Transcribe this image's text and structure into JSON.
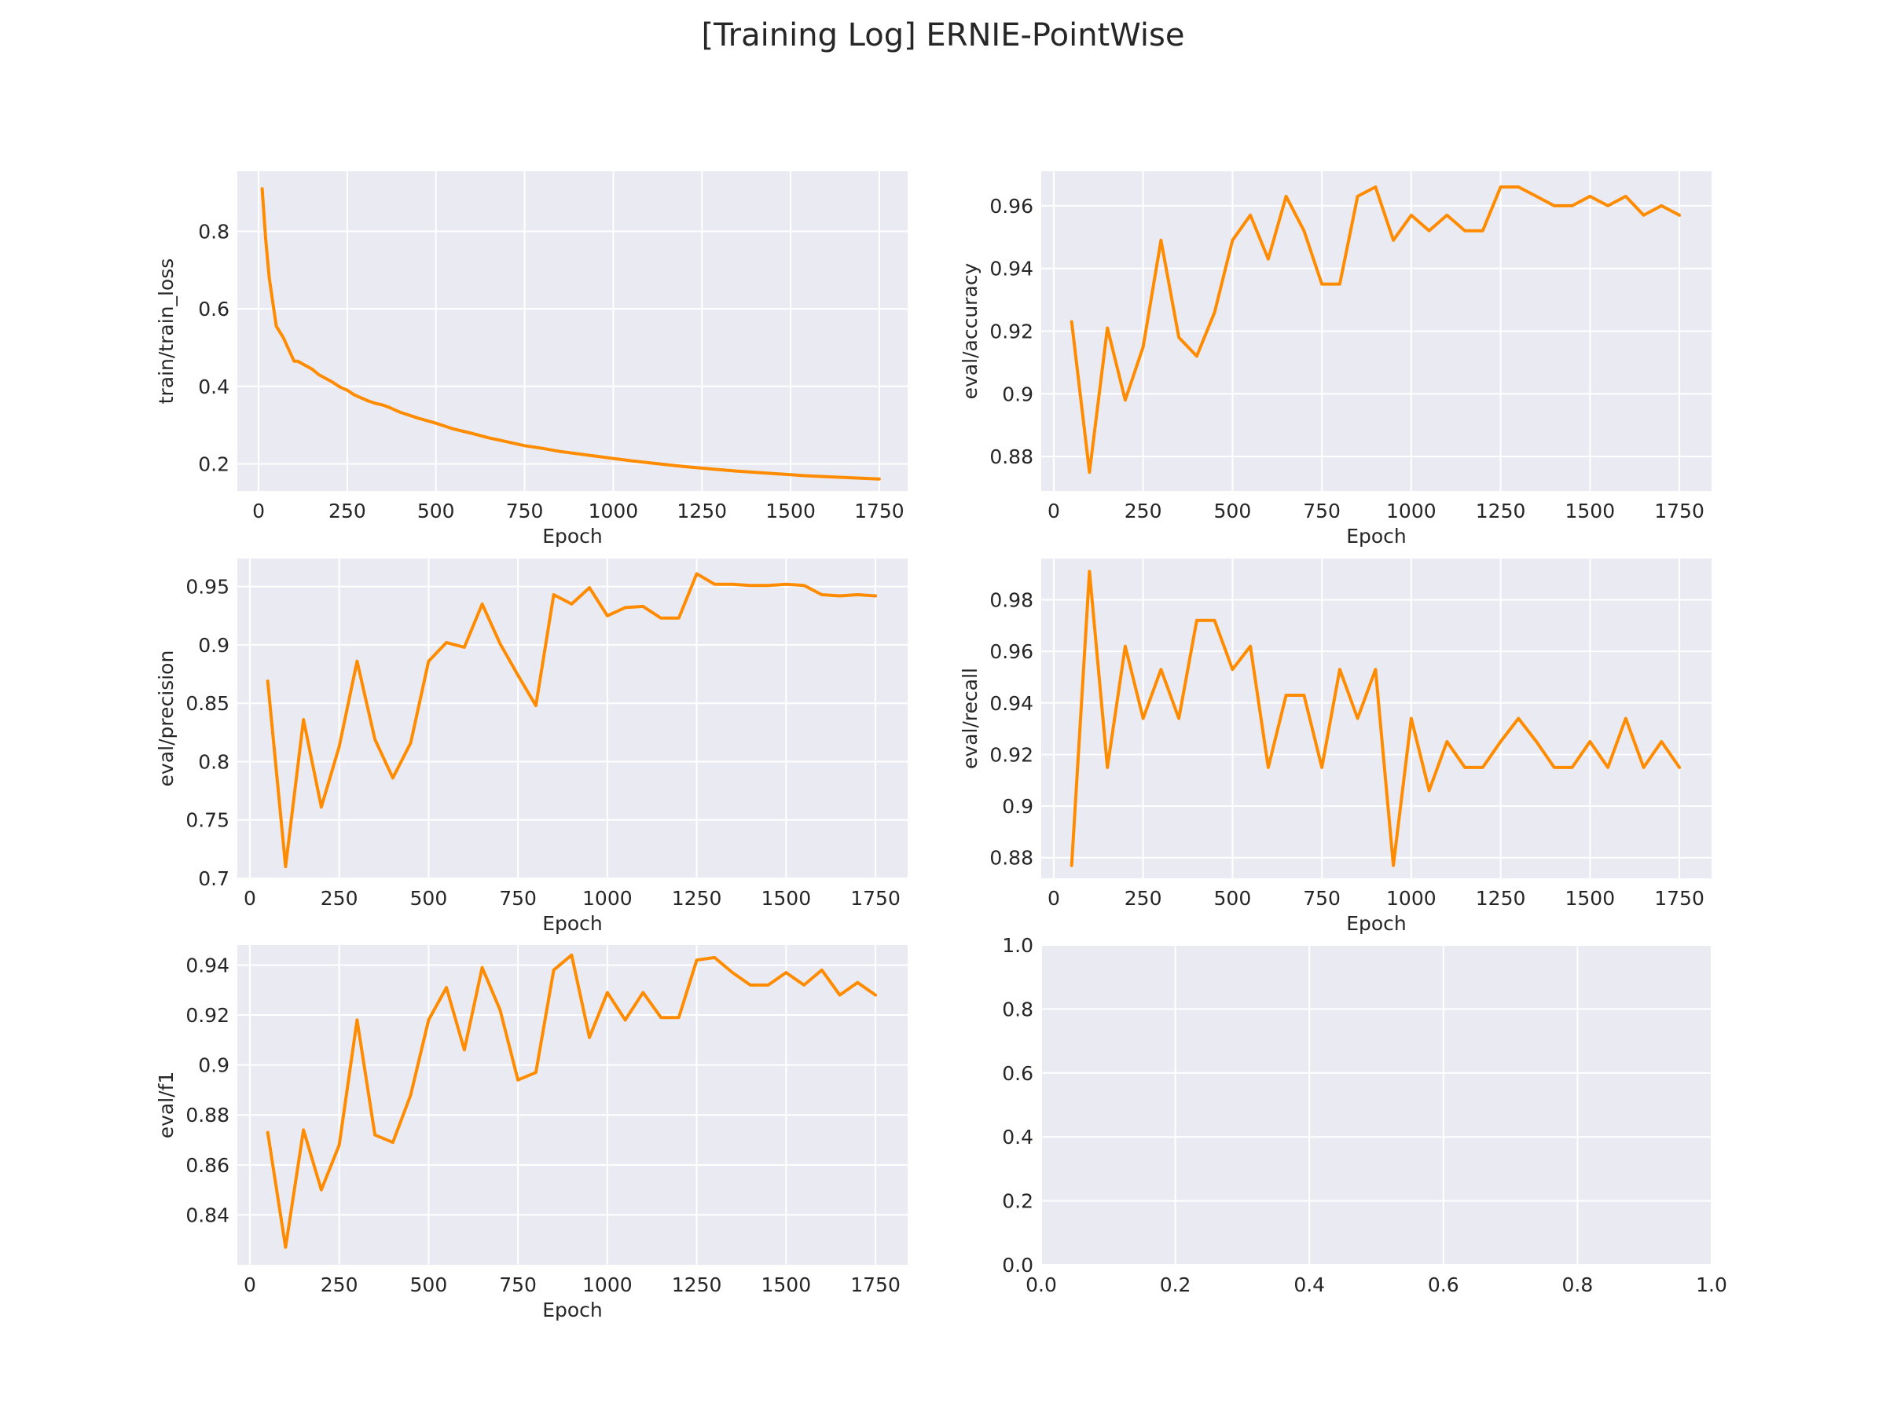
{
  "figure": {
    "title": "[Training Log] ERNIE-PointWise"
  },
  "style": {
    "line_color": "#ff8c00",
    "axes_bg": "#eaeaf2",
    "grid_color": "#ffffff",
    "text_color": "#262626"
  },
  "chart_data": [
    {
      "type": "line",
      "xlabel": "Epoch",
      "ylabel": "train/train_loss",
      "xlim": [
        -60,
        1830
      ],
      "ylim": [
        0.13,
        0.955
      ],
      "grid": true,
      "xticks": [
        0,
        250,
        500,
        750,
        1000,
        1250,
        1500,
        1750
      ],
      "yticks": [
        0.2,
        0.4,
        0.6,
        0.8
      ],
      "x": [
        10,
        20,
        30,
        50,
        70,
        90,
        100,
        110,
        130,
        150,
        170,
        190,
        210,
        230,
        250,
        270,
        290,
        310,
        330,
        350,
        370,
        400,
        450,
        500,
        550,
        600,
        650,
        700,
        750,
        800,
        850,
        900,
        950,
        1000,
        1050,
        1100,
        1150,
        1200,
        1250,
        1300,
        1350,
        1400,
        1450,
        1500,
        1550,
        1600,
        1650,
        1700,
        1750
      ],
      "y": [
        0.91,
        0.78,
        0.68,
        0.555,
        0.525,
        0.485,
        0.465,
        0.465,
        0.455,
        0.445,
        0.43,
        0.42,
        0.41,
        0.398,
        0.39,
        0.378,
        0.37,
        0.362,
        0.356,
        0.352,
        0.345,
        0.333,
        0.318,
        0.305,
        0.29,
        0.279,
        0.267,
        0.257,
        0.247,
        0.24,
        0.232,
        0.226,
        0.22,
        0.214,
        0.208,
        0.203,
        0.198,
        0.193,
        0.189,
        0.185,
        0.181,
        0.178,
        0.175,
        0.172,
        0.169,
        0.167,
        0.165,
        0.163,
        0.161
      ]
    },
    {
      "type": "line",
      "xlabel": "Epoch",
      "ylabel": "eval/accuracy",
      "xlim": [
        -35,
        1840
      ],
      "ylim": [
        0.869,
        0.971
      ],
      "grid": true,
      "xticks": [
        0,
        250,
        500,
        750,
        1000,
        1250,
        1500,
        1750
      ],
      "yticks": [
        0.88,
        0.9,
        0.92,
        0.94,
        0.96
      ],
      "x": [
        50,
        100,
        150,
        200,
        250,
        300,
        350,
        400,
        450,
        500,
        550,
        600,
        650,
        700,
        750,
        800,
        850,
        900,
        950,
        1000,
        1050,
        1100,
        1150,
        1200,
        1250,
        1300,
        1350,
        1400,
        1450,
        1500,
        1550,
        1600,
        1650,
        1700,
        1750
      ],
      "y": [
        0.923,
        0.875,
        0.921,
        0.898,
        0.915,
        0.949,
        0.918,
        0.912,
        0.926,
        0.949,
        0.957,
        0.943,
        0.963,
        0.952,
        0.935,
        0.935,
        0.963,
        0.966,
        0.949,
        0.957,
        0.952,
        0.957,
        0.952,
        0.952,
        0.966,
        0.966,
        0.963,
        0.96,
        0.96,
        0.963,
        0.96,
        0.963,
        0.957,
        0.96,
        0.957
      ]
    },
    {
      "type": "line",
      "xlabel": "Epoch",
      "ylabel": "eval/precision",
      "xlim": [
        -35,
        1840
      ],
      "ylim": [
        0.7,
        0.974
      ],
      "grid": true,
      "xticks": [
        0,
        250,
        500,
        750,
        1000,
        1250,
        1500,
        1750
      ],
      "yticks": [
        0.7,
        0.75,
        0.8,
        0.85,
        0.9,
        0.95
      ],
      "x": [
        50,
        100,
        150,
        200,
        250,
        300,
        350,
        400,
        450,
        500,
        550,
        600,
        650,
        700,
        750,
        800,
        850,
        900,
        950,
        1000,
        1050,
        1100,
        1150,
        1200,
        1250,
        1300,
        1350,
        1400,
        1450,
        1500,
        1550,
        1600,
        1650,
        1700,
        1750
      ],
      "y": [
        0.869,
        0.71,
        0.836,
        0.761,
        0.813,
        0.886,
        0.819,
        0.786,
        0.816,
        0.886,
        0.902,
        0.898,
        0.935,
        0.901,
        0.874,
        0.848,
        0.943,
        0.935,
        0.949,
        0.925,
        0.932,
        0.933,
        0.923,
        0.923,
        0.961,
        0.952,
        0.952,
        0.951,
        0.951,
        0.952,
        0.951,
        0.943,
        0.942,
        0.943,
        0.942
      ]
    },
    {
      "type": "line",
      "xlabel": "Epoch",
      "ylabel": "eval/recall",
      "xlim": [
        -35,
        1840
      ],
      "ylim": [
        0.872,
        0.996
      ],
      "grid": true,
      "xticks": [
        0,
        250,
        500,
        750,
        1000,
        1250,
        1500,
        1750
      ],
      "yticks": [
        0.88,
        0.9,
        0.92,
        0.94,
        0.96,
        0.98
      ],
      "x": [
        50,
        100,
        150,
        200,
        250,
        300,
        350,
        400,
        450,
        500,
        550,
        600,
        650,
        700,
        750,
        800,
        850,
        900,
        950,
        1000,
        1050,
        1100,
        1150,
        1200,
        1250,
        1300,
        1350,
        1400,
        1450,
        1500,
        1550,
        1600,
        1650,
        1700,
        1750
      ],
      "y": [
        0.877,
        0.991,
        0.915,
        0.962,
        0.934,
        0.953,
        0.934,
        0.972,
        0.972,
        0.953,
        0.962,
        0.915,
        0.943,
        0.943,
        0.915,
        0.953,
        0.934,
        0.953,
        0.877,
        0.934,
        0.906,
        0.925,
        0.915,
        0.915,
        0.925,
        0.934,
        0.925,
        0.915,
        0.915,
        0.925,
        0.915,
        0.934,
        0.915,
        0.925,
        0.915
      ]
    },
    {
      "type": "line",
      "xlabel": "Epoch",
      "ylabel": "eval/f1",
      "xlim": [
        -35,
        1840
      ],
      "ylim": [
        0.82,
        0.948
      ],
      "grid": true,
      "xticks": [
        0,
        250,
        500,
        750,
        1000,
        1250,
        1500,
        1750
      ],
      "yticks": [
        0.84,
        0.86,
        0.88,
        0.9,
        0.92,
        0.94
      ],
      "x": [
        50,
        100,
        150,
        200,
        250,
        300,
        350,
        400,
        450,
        500,
        550,
        600,
        650,
        700,
        750,
        800,
        850,
        900,
        950,
        1000,
        1050,
        1100,
        1150,
        1200,
        1250,
        1300,
        1350,
        1400,
        1450,
        1500,
        1550,
        1600,
        1650,
        1700,
        1750
      ],
      "y": [
        0.873,
        0.827,
        0.874,
        0.85,
        0.868,
        0.918,
        0.872,
        0.869,
        0.888,
        0.918,
        0.931,
        0.906,
        0.939,
        0.922,
        0.894,
        0.897,
        0.938,
        0.944,
        0.911,
        0.929,
        0.918,
        0.929,
        0.919,
        0.919,
        0.942,
        0.943,
        0.937,
        0.932,
        0.932,
        0.937,
        0.932,
        0.938,
        0.928,
        0.933,
        0.928
      ]
    },
    {
      "type": "line",
      "xlabel": "",
      "ylabel": "",
      "xlim": [
        0,
        1
      ],
      "ylim": [
        0,
        1
      ],
      "grid": true,
      "xticks": [
        0.0,
        0.2,
        0.4,
        0.6,
        0.8,
        1.0
      ],
      "yticks": [
        0.0,
        0.2,
        0.4,
        0.6,
        0.8,
        1.0
      ],
      "tick_decimals": 1,
      "x": [],
      "y": []
    }
  ]
}
